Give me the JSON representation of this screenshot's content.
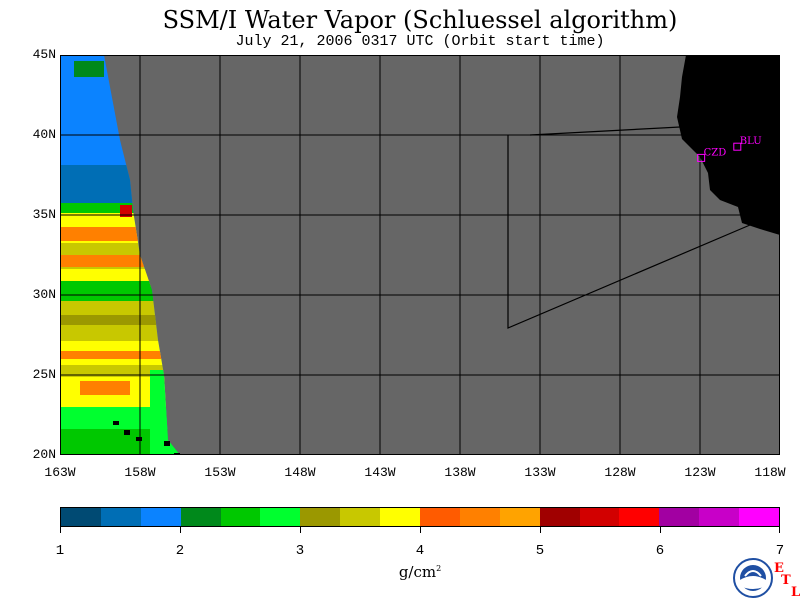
{
  "title": "SSM/I Water Vapor (Schluessel algorithm)",
  "subtitle": "July 21, 2006  0317 UTC  (Orbit start time)",
  "map": {
    "lat_labels": [
      "45N",
      "40N",
      "35N",
      "30N",
      "25N",
      "20N"
    ],
    "lon_labels": [
      "163W",
      "158W",
      "153W",
      "148W",
      "143W",
      "138W",
      "133W",
      "128W",
      "123W",
      "118W"
    ],
    "stations": [
      {
        "id": "CZD",
        "lat": 38.6,
        "lon": -122.96
      },
      {
        "id": "BLU",
        "lat": 39.3,
        "lon": -120.7
      }
    ],
    "colors": {
      "no_data": "#666666",
      "land": "#000000",
      "station": "#ff00ff",
      "grid": "#000000"
    }
  },
  "colorbar": {
    "tick_labels": [
      "1",
      "2",
      "3",
      "4",
      "5",
      "6",
      "7"
    ],
    "units_base": "g/cm",
    "units_exp": "2",
    "colors": [
      "#004a73",
      "#006eb5",
      "#0b83ff",
      "#00891b",
      "#00c800",
      "#00ff2f",
      "#9b9800",
      "#c8c800",
      "#ffff00",
      "#ff5b00",
      "#ff8000",
      "#ffa300",
      "#a00000",
      "#d20000",
      "#ff0000",
      "#a200a2",
      "#c800c8",
      "#ff00ff"
    ]
  },
  "branding": {
    "logo_text": "NOAA",
    "etl": [
      "E",
      "T",
      "L"
    ]
  }
}
